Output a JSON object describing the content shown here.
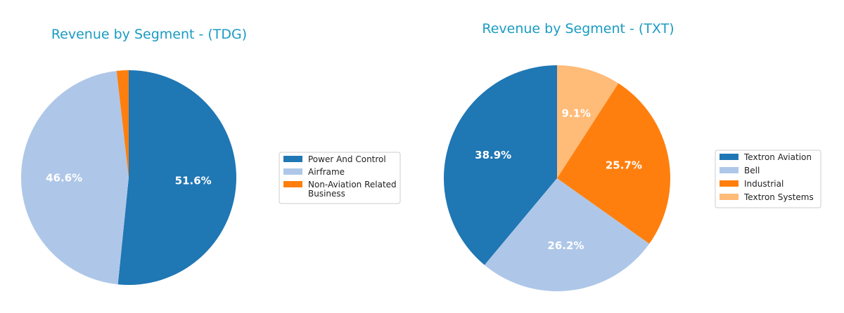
{
  "chart_data": [
    {
      "type": "pie",
      "title": "Revenue by Segment - (TDG)",
      "categories": [
        "Power And Control",
        "Airframe",
        "Non-Aviation Related Business"
      ],
      "legend_lines": [
        [
          "Power And Control"
        ],
        [
          "Airframe"
        ],
        [
          "Non-Aviation Related",
          "Business"
        ]
      ],
      "values": [
        51.6,
        46.6,
        1.8
      ],
      "labels": [
        "51.6%",
        "46.6%",
        ""
      ],
      "colors": [
        "#1f77b4",
        "#aec7e8",
        "#ff7f0e"
      ],
      "start_angle": 90,
      "direction": "clockwise",
      "legend_position": "right"
    },
    {
      "type": "pie",
      "title": "Revenue by Segment - (TXT)",
      "categories": [
        "Textron Aviation",
        "Bell",
        "Industrial",
        "Textron Systems"
      ],
      "legend_lines": [
        [
          "Textron Aviation"
        ],
        [
          "Bell"
        ],
        [
          "Industrial"
        ],
        [
          "Textron Systems"
        ]
      ],
      "values": [
        38.9,
        26.2,
        25.7,
        9.1
      ],
      "labels": [
        "38.9%",
        "26.2%",
        "25.7%",
        "9.1%"
      ],
      "colors": [
        "#1f77b4",
        "#aec7e8",
        "#ff7f0e",
        "#ffbb78"
      ],
      "start_angle": 90,
      "direction": "counterclockwise",
      "legend_position": "right"
    }
  ]
}
